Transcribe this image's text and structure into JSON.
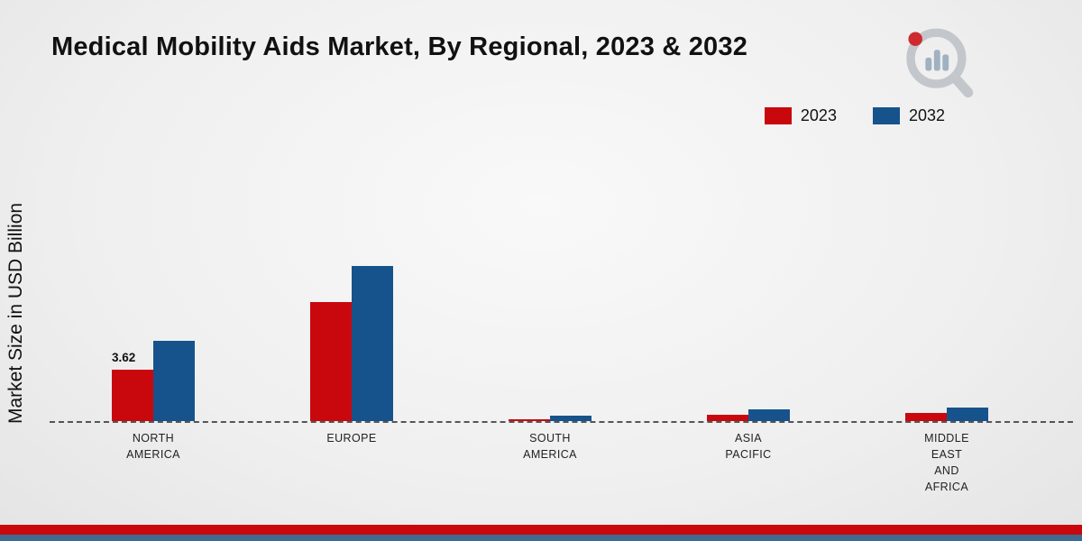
{
  "title": "Medical Mobility Aids Market, By Regional, 2023 & 2032",
  "y_axis_label": "Market Size in USD Billion",
  "legend": [
    {
      "label": "2023",
      "color": "#c9080e"
    },
    {
      "label": "2032",
      "color": "#16538c"
    }
  ],
  "colors": {
    "series_2023": "#c9080e",
    "series_2032": "#16538c",
    "footer_red_band": "#c9080e",
    "footer_blue_band": "#3d6a8f",
    "baseline": "#555555"
  },
  "chart_data": {
    "type": "bar",
    "categories": [
      "NORTH AMERICA",
      "EUROPE",
      "SOUTH AMERICA",
      "ASIA PACIFIC",
      "MIDDLE EAST AND AFRICA"
    ],
    "series": [
      {
        "name": "2023",
        "color": "#c9080e",
        "values": [
          3.62,
          8.35,
          0.15,
          0.45,
          0.55
        ]
      },
      {
        "name": "2032",
        "color": "#16538c",
        "values": [
          5.65,
          10.9,
          0.35,
          0.8,
          0.95
        ]
      }
    ],
    "title": "Medical Mobility Aids Market, By Regional, 2023 & 2032",
    "xlabel": "",
    "ylabel": "Market Size in USD Billion",
    "ylim": [
      0,
      12
    ],
    "grid": false,
    "legend_position": "top-right",
    "baseline_style": "dashed",
    "data_labels": [
      {
        "series": 0,
        "category": 0,
        "text": "3.62"
      }
    ]
  }
}
